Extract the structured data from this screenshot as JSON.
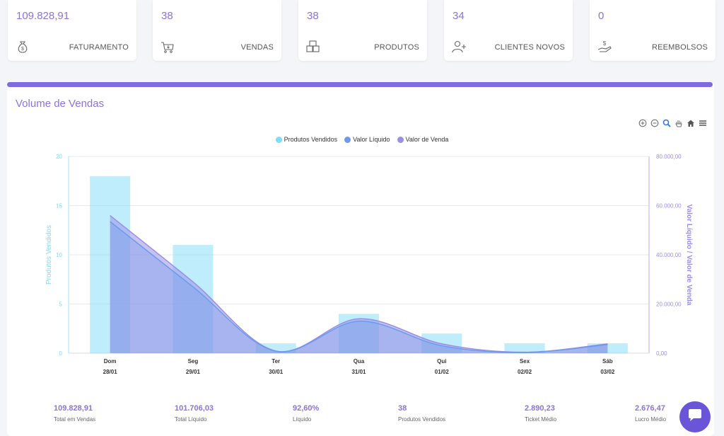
{
  "stats": [
    {
      "value": "109.828,91",
      "label": "FATURAMENTO",
      "icon": "money-bag-icon"
    },
    {
      "value": "38",
      "label": "VENDAS",
      "icon": "cart-icon"
    },
    {
      "value": "38",
      "label": "PRODUTOS",
      "icon": "boxes-icon"
    },
    {
      "value": "34",
      "label": "CLIENTES NOVOS",
      "icon": "add-user-icon"
    },
    {
      "value": "0",
      "label": "REEMBOLSOS",
      "icon": "refund-hand-icon"
    }
  ],
  "panel": {
    "title": "Volume de Vendas",
    "accent_color": "#7f6be0"
  },
  "toolbar": [
    "zoom-in-icon",
    "zoom-out-icon",
    "search-zoom-icon",
    "pan-hand-icon",
    "home-icon",
    "menu-icon"
  ],
  "chart_data": {
    "type": "bar",
    "categories": [
      [
        "Dom",
        "28/01"
      ],
      [
        "Seg",
        "29/01"
      ],
      [
        "Ter",
        "30/01"
      ],
      [
        "Qua",
        "31/01"
      ],
      [
        "Qui",
        "01/02"
      ],
      [
        "Sex",
        "02/02"
      ],
      [
        "Sáb",
        "03/02"
      ]
    ],
    "series": [
      {
        "name": "Produtos Vendidos",
        "type": "bar",
        "axis": "left",
        "color": "#7fdcf7",
        "values": [
          18,
          11,
          1,
          4,
          2,
          1,
          1
        ]
      },
      {
        "name": "Valor Líquido",
        "type": "area",
        "axis": "right",
        "color": "#6c9bea",
        "values": [
          53500,
          27000,
          800,
          13000,
          3000,
          300,
          3500
        ]
      },
      {
        "name": "Valor de Venda",
        "type": "area",
        "axis": "right",
        "color": "#9a8fe8",
        "values": [
          56000,
          29000,
          900,
          14000,
          3800,
          400,
          3800
        ]
      }
    ],
    "ylabel": "Produtos Vendidos",
    "y2label": "Valor Líquido / Valor de Venda",
    "ylim": [
      0,
      20
    ],
    "y2lim": [
      0,
      80000
    ],
    "yticks": [
      "0",
      "5",
      "10",
      "15",
      "20"
    ],
    "y2ticks": [
      "0,00",
      "20.000,00",
      "40.000,00",
      "60.000,00",
      "80.000,00"
    ],
    "grid": true,
    "legend_position": "top-center"
  },
  "summary": [
    {
      "value": "109.828,91",
      "label": "Total em Vendas"
    },
    {
      "value": "101.706,03",
      "label": "Total Líquido"
    },
    {
      "value": "92,60%",
      "label": "Líquido"
    },
    {
      "value": "38",
      "label": "Produtos Vendidos"
    },
    {
      "value": "2.890,23",
      "label": "Ticket Médio"
    },
    {
      "value": "2.676,47",
      "label": "Lucro Médio"
    }
  ],
  "chat": {
    "icon": "chat-bubble-icon",
    "color": "#6a55d8"
  }
}
